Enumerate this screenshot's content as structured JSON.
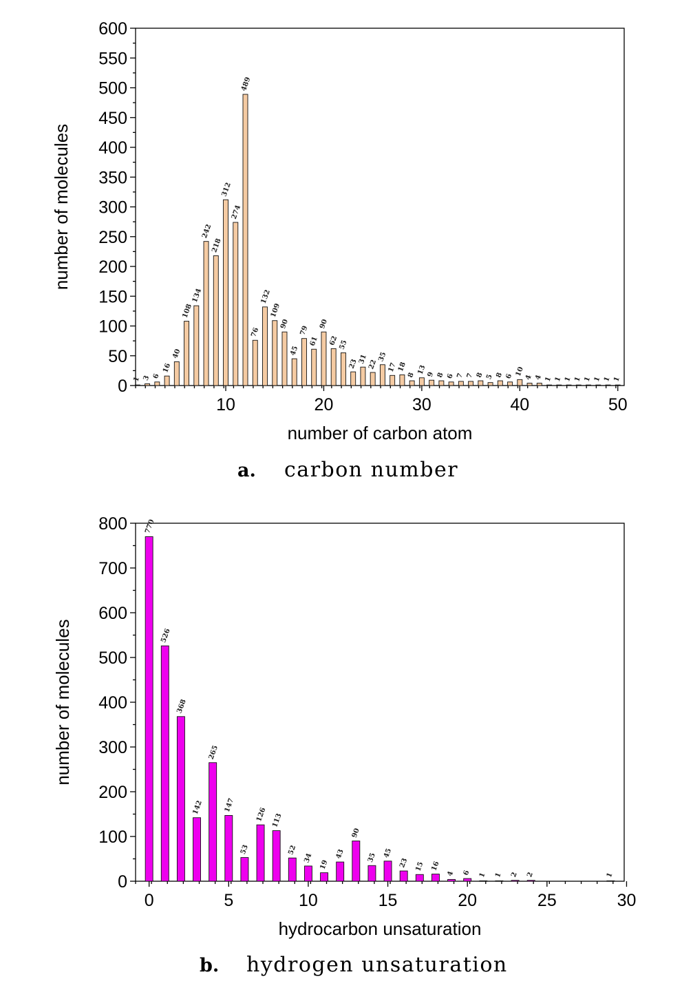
{
  "chart_data": [
    {
      "type": "bar",
      "caption_letter": "a.",
      "caption": "carbon number",
      "xlabel": "number of carbon atom",
      "ylabel": "number of molecules",
      "xlim": [
        0,
        50
      ],
      "ylim": [
        0,
        600
      ],
      "x_ticks": [
        10,
        20,
        30,
        40,
        50
      ],
      "y_ticks": [
        0,
        50,
        100,
        150,
        200,
        250,
        300,
        350,
        400,
        450,
        500,
        550,
        600
      ],
      "grid": false,
      "bar_color": "#f5cba3",
      "x": [
        1,
        2,
        3,
        4,
        5,
        6,
        7,
        8,
        9,
        10,
        11,
        12,
        13,
        14,
        15,
        16,
        17,
        18,
        19,
        20,
        21,
        22,
        23,
        24,
        25,
        26,
        27,
        28,
        29,
        30,
        31,
        32,
        33,
        34,
        35,
        36,
        37,
        38,
        39,
        40,
        41,
        42,
        43,
        44,
        45,
        46,
        47,
        48,
        49,
        50
      ],
      "values": [
        1,
        3,
        6,
        16,
        40,
        108,
        134,
        242,
        218,
        312,
        274,
        489,
        76,
        132,
        109,
        90,
        45,
        79,
        61,
        90,
        62,
        55,
        23,
        31,
        22,
        35,
        17,
        18,
        8,
        13,
        9,
        8,
        6,
        7,
        7,
        8,
        5,
        8,
        6,
        10,
        4,
        4,
        1,
        1,
        1,
        1,
        1,
        1,
        1,
        1
      ]
    },
    {
      "type": "bar",
      "caption_letter": "b.",
      "caption": "hydrogen unsaturation",
      "xlabel": "hydrocarbon unsaturation",
      "ylabel": "number of molecules",
      "xlim": [
        0,
        30
      ],
      "ylim": [
        0,
        800
      ],
      "x_ticks": [
        0,
        5,
        10,
        15,
        20,
        25,
        30
      ],
      "y_ticks": [
        0,
        100,
        200,
        300,
        400,
        500,
        600,
        700,
        800
      ],
      "grid": false,
      "bar_color": "#ee00ee",
      "x": [
        0,
        1,
        2,
        3,
        4,
        5,
        6,
        7,
        8,
        9,
        10,
        11,
        12,
        13,
        14,
        15,
        16,
        17,
        18,
        19,
        20,
        21,
        22,
        23,
        24,
        29
      ],
      "values": [
        770,
        526,
        368,
        142,
        265,
        147,
        53,
        126,
        113,
        52,
        34,
        19,
        43,
        90,
        35,
        45,
        23,
        15,
        16,
        4,
        6,
        1,
        1,
        2,
        2,
        1
      ]
    }
  ]
}
